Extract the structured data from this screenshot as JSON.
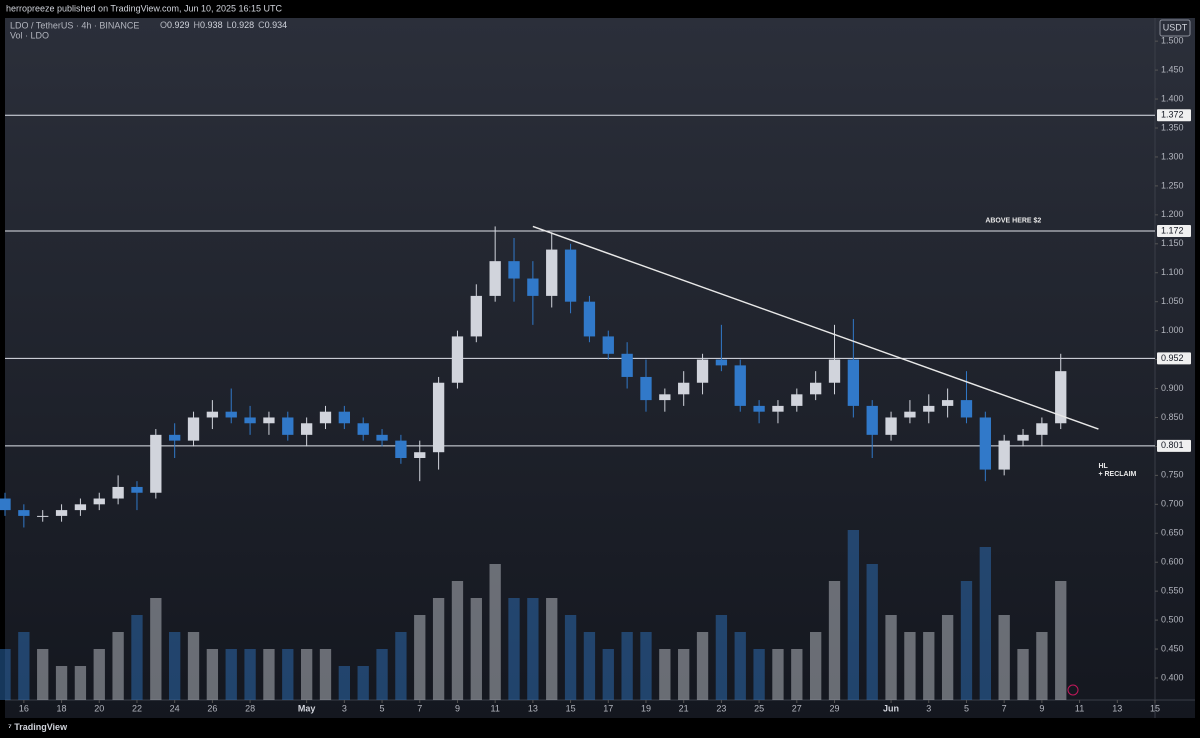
{
  "chart_data": {
    "type": "candlestick",
    "header": "herropreeze published on TradingView.com, Jun 10, 2025 16:15 UTC",
    "symbol": "LDO / TetherUS · 4h · BINANCE",
    "ohlc": [
      {
        "key": "O",
        "value": 0.929
      },
      {
        "key": "H",
        "value": 0.938
      },
      {
        "key": "L",
        "value": 0.928
      },
      {
        "key": "C",
        "value": 0.934
      }
    ],
    "volume_label": "Vol · LDO",
    "currency": "USDT",
    "footer": "TradingView",
    "up_color": "#d1d4dc",
    "down_color": "#3179c9",
    "x": [
      "Apr 15",
      "Apr 16",
      "Apr 17",
      "Apr 18",
      "Apr 19",
      "Apr 20",
      "Apr 21",
      "Apr 22",
      "Apr 23",
      "Apr 24",
      "Apr 25",
      "Apr 26",
      "Apr 27",
      "Apr 28",
      "Apr 29",
      "Apr 30",
      "May 1",
      "May 2",
      "May 3",
      "May 4",
      "May 5",
      "May 6",
      "May 7",
      "May 8",
      "May 9",
      "May 10",
      "May 11",
      "May 12",
      "May 13",
      "May 14",
      "May 15",
      "May 16",
      "May 17",
      "May 18",
      "May 19",
      "May 20",
      "May 21",
      "May 22",
      "May 23",
      "May 24",
      "May 25",
      "May 26",
      "May 27",
      "May 28",
      "May 29",
      "May 30",
      "May 31",
      "Jun 1",
      "Jun 2",
      "Jun 3",
      "Jun 4",
      "Jun 5",
      "Jun 6",
      "Jun 7",
      "Jun 8",
      "Jun 9",
      "Jun 10"
    ],
    "open": [
      0.71,
      0.69,
      0.68,
      0.68,
      0.69,
      0.7,
      0.71,
      0.73,
      0.72,
      0.82,
      0.81,
      0.85,
      0.86,
      0.85,
      0.84,
      0.85,
      0.82,
      0.84,
      0.86,
      0.84,
      0.82,
      0.81,
      0.78,
      0.79,
      0.91,
      0.99,
      1.06,
      1.12,
      1.09,
      1.06,
      1.14,
      1.05,
      0.99,
      0.96,
      0.92,
      0.88,
      0.89,
      0.91,
      0.95,
      0.94,
      0.87,
      0.86,
      0.87,
      0.89,
      0.91,
      0.95,
      0.87,
      0.82,
      0.85,
      0.86,
      0.87,
      0.88,
      0.85,
      0.76,
      0.81,
      0.82,
      0.84
    ],
    "high": [
      0.72,
      0.7,
      0.69,
      0.7,
      0.71,
      0.72,
      0.75,
      0.74,
      0.83,
      0.84,
      0.86,
      0.88,
      0.9,
      0.87,
      0.86,
      0.86,
      0.85,
      0.87,
      0.87,
      0.85,
      0.83,
      0.82,
      0.81,
      0.92,
      1.0,
      1.08,
      1.18,
      1.16,
      1.12,
      1.17,
      1.15,
      1.06,
      1.0,
      0.98,
      0.95,
      0.9,
      0.93,
      0.96,
      1.01,
      0.95,
      0.88,
      0.88,
      0.9,
      0.93,
      1.01,
      1.02,
      0.88,
      0.86,
      0.88,
      0.89,
      0.9,
      0.93,
      0.86,
      0.82,
      0.83,
      0.85,
      0.96
    ],
    "low": [
      0.68,
      0.66,
      0.67,
      0.67,
      0.68,
      0.69,
      0.7,
      0.69,
      0.71,
      0.78,
      0.8,
      0.83,
      0.84,
      0.82,
      0.82,
      0.81,
      0.8,
      0.83,
      0.83,
      0.81,
      0.8,
      0.77,
      0.74,
      0.76,
      0.9,
      0.98,
      1.05,
      1.05,
      1.01,
      1.04,
      1.03,
      0.98,
      0.95,
      0.9,
      0.86,
      0.86,
      0.87,
      0.89,
      0.93,
      0.86,
      0.84,
      0.84,
      0.86,
      0.88,
      0.89,
      0.85,
      0.78,
      0.81,
      0.84,
      0.84,
      0.85,
      0.84,
      0.74,
      0.75,
      0.8,
      0.8,
      0.83
    ],
    "close": [
      0.69,
      0.68,
      0.68,
      0.69,
      0.7,
      0.71,
      0.73,
      0.72,
      0.82,
      0.81,
      0.85,
      0.86,
      0.85,
      0.84,
      0.85,
      0.82,
      0.84,
      0.86,
      0.84,
      0.82,
      0.81,
      0.78,
      0.79,
      0.91,
      0.99,
      1.06,
      1.12,
      1.09,
      1.06,
      1.14,
      1.05,
      0.99,
      0.96,
      0.92,
      0.88,
      0.89,
      0.91,
      0.95,
      0.94,
      0.87,
      0.86,
      0.87,
      0.89,
      0.91,
      0.95,
      0.87,
      0.82,
      0.85,
      0.86,
      0.87,
      0.88,
      0.85,
      0.76,
      0.81,
      0.82,
      0.84,
      0.93
    ],
    "volume": [
      3,
      4,
      3,
      2,
      2,
      3,
      4,
      5,
      6,
      4,
      4,
      3,
      3,
      3,
      3,
      3,
      3,
      3,
      2,
      2,
      3,
      4,
      5,
      6,
      7,
      6,
      8,
      6,
      6,
      6,
      5,
      4,
      3,
      4,
      4,
      3,
      3,
      4,
      5,
      4,
      3,
      3,
      3,
      4,
      7,
      10,
      8,
      5,
      4,
      4,
      5,
      7,
      9,
      5,
      3,
      4,
      7
    ],
    "xlim": [
      "Apr 15",
      "Jun 15"
    ],
    "xticks": [
      {
        "value": "Apr 16",
        "label": "16"
      },
      {
        "value": "Apr 18",
        "label": "18"
      },
      {
        "value": "Apr 20",
        "label": "20"
      },
      {
        "value": "Apr 22",
        "label": "22"
      },
      {
        "value": "Apr 24",
        "label": "24"
      },
      {
        "value": "Apr 26",
        "label": "26"
      },
      {
        "value": "Apr 28",
        "label": "28"
      },
      {
        "value": "May 1",
        "label": "May"
      },
      {
        "value": "May 3",
        "label": "3"
      },
      {
        "value": "May 5",
        "label": "5"
      },
      {
        "value": "May 7",
        "label": "7"
      },
      {
        "value": "May 9",
        "label": "9"
      },
      {
        "value": "May 11",
        "label": "11"
      },
      {
        "value": "May 13",
        "label": "13"
      },
      {
        "value": "May 15",
        "label": "15"
      },
      {
        "value": "May 17",
        "label": "17"
      },
      {
        "value": "May 19",
        "label": "19"
      },
      {
        "value": "May 21",
        "label": "21"
      },
      {
        "value": "May 23",
        "label": "23"
      },
      {
        "value": "May 25",
        "label": "25"
      },
      {
        "value": "May 27",
        "label": "27"
      },
      {
        "value": "May 29",
        "label": "29"
      },
      {
        "value": "Jun 1",
        "label": "Jun"
      },
      {
        "value": "Jun 3",
        "label": "3"
      },
      {
        "value": "Jun 5",
        "label": "5"
      },
      {
        "value": "Jun 7",
        "label": "7"
      },
      {
        "value": "Jun 9",
        "label": "9"
      },
      {
        "value": "Jun 11",
        "label": "11"
      },
      {
        "value": "Jun 13",
        "label": "13"
      },
      {
        "value": "Jun 15",
        "label": "15"
      }
    ],
    "ylim": [
      0.362,
      1.54
    ],
    "yticks": [
      {
        "value": 1.5,
        "label": "1.500"
      },
      {
        "value": 1.45,
        "label": "1.450"
      },
      {
        "value": 1.4,
        "label": "1.400"
      },
      {
        "value": 1.35,
        "label": "1.350"
      },
      {
        "value": 1.3,
        "label": "1.300"
      },
      {
        "value": 1.25,
        "label": "1.250"
      },
      {
        "value": 1.2,
        "label": "1.200"
      },
      {
        "value": 1.15,
        "label": "1.150"
      },
      {
        "value": 1.1,
        "label": "1.100"
      },
      {
        "value": 1.05,
        "label": "1.050"
      },
      {
        "value": 1.0,
        "label": "1.000"
      },
      {
        "value": 0.95,
        "label": "0.950"
      },
      {
        "value": 0.9,
        "label": "0.900"
      },
      {
        "value": 0.85,
        "label": "0.850"
      },
      {
        "value": 0.8,
        "label": "0.800"
      },
      {
        "value": 0.75,
        "label": "0.750"
      },
      {
        "value": 0.7,
        "label": "0.700"
      },
      {
        "value": 0.65,
        "label": "0.650"
      },
      {
        "value": 0.6,
        "label": "0.600"
      },
      {
        "value": 0.55,
        "label": "0.550"
      },
      {
        "value": 0.5,
        "label": "0.500"
      },
      {
        "value": 0.45,
        "label": "0.450"
      },
      {
        "value": 0.4,
        "label": "0.400"
      }
    ],
    "levels": [
      1.372,
      1.172,
      0.952,
      0.801
    ],
    "trendline": [
      {
        "x": "May 13",
        "y": 1.18
      },
      {
        "x": "Jun 12",
        "y": 0.83
      }
    ],
    "annotations": [
      {
        "text": "ABOVE HERE $2",
        "x": "Jun 6",
        "y": 1.19
      },
      {
        "text": "HL",
        "x": "Jun 12",
        "y": 0.766
      },
      {
        "text": "+ RECLAIM",
        "x": "Jun 12",
        "y": 0.752
      }
    ]
  }
}
